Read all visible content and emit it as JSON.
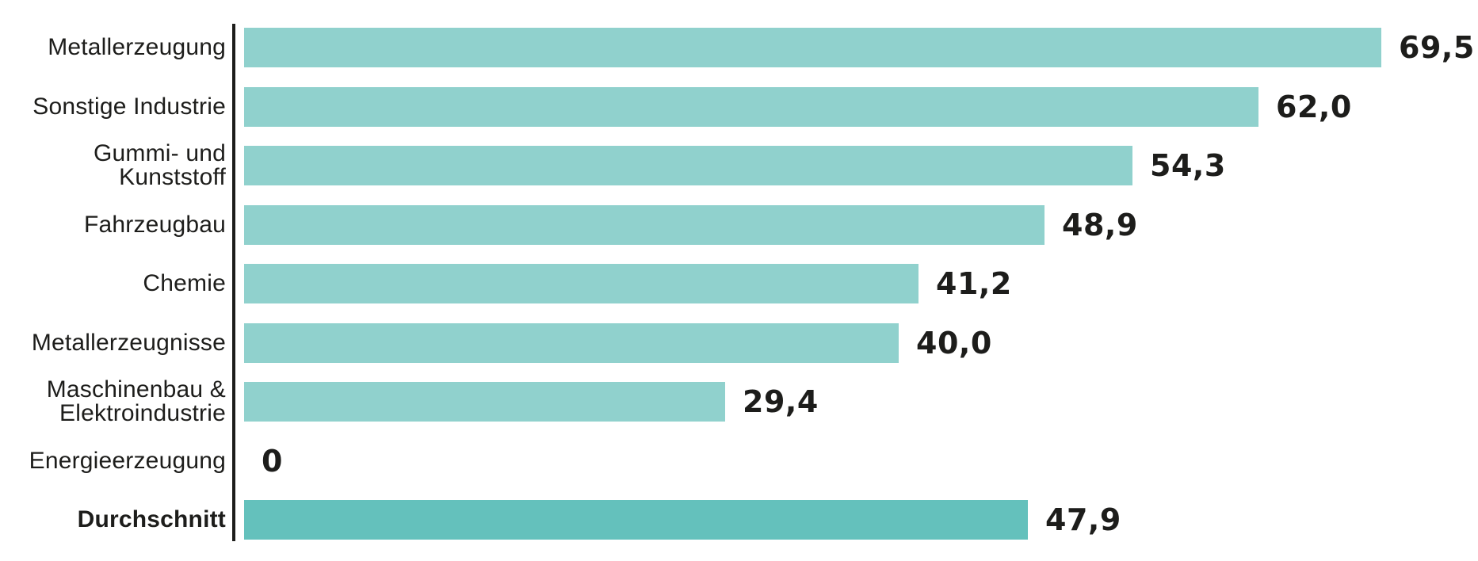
{
  "chart_data": {
    "type": "bar",
    "orientation": "horizontal",
    "title": "",
    "xlabel": "",
    "ylabel": "",
    "xlim": [
      0,
      75
    ],
    "grid": false,
    "legend": null,
    "decimal_style": "comma",
    "categories": [
      "Metallerzeugung",
      "Sonstige Industrie",
      "Gummi- und Kunststoff",
      "Fahrzeugbau",
      "Chemie",
      "Metallerzeugnisse",
      "Maschinenbau & Elektroindustrie",
      "Energieerzeugung",
      "Durchschnitt"
    ],
    "values": [
      69.5,
      62.0,
      54.3,
      48.9,
      41.2,
      40.0,
      29.4,
      0,
      47.9
    ],
    "rows": [
      {
        "label_lines": [
          "Metallerzeugung"
        ],
        "value": 69.5,
        "value_label": "69,5",
        "emphasis": false
      },
      {
        "label_lines": [
          "Sonstige Industrie"
        ],
        "value": 62.0,
        "value_label": "62,0",
        "emphasis": false
      },
      {
        "label_lines": [
          "Gummi- und",
          "Kunststoff"
        ],
        "value": 54.3,
        "value_label": "54,3",
        "emphasis": false
      },
      {
        "label_lines": [
          "Fahrzeugbau"
        ],
        "value": 48.9,
        "value_label": "48,9",
        "emphasis": false
      },
      {
        "label_lines": [
          "Chemie"
        ],
        "value": 41.2,
        "value_label": "41,2",
        "emphasis": false
      },
      {
        "label_lines": [
          "Metallerzeugnisse"
        ],
        "value": 40.0,
        "value_label": "40,0",
        "emphasis": false
      },
      {
        "label_lines": [
          "Maschinenbau &",
          "Elektroindustrie"
        ],
        "value": 29.4,
        "value_label": "29,4",
        "emphasis": false
      },
      {
        "label_lines": [
          "Energieerzeugung"
        ],
        "value": 0,
        "value_label": "0",
        "emphasis": false
      },
      {
        "label_lines": [
          "Durchschnitt"
        ],
        "value": 47.9,
        "value_label": "47,9",
        "emphasis": true
      }
    ],
    "colors": {
      "bar": "#90d1cd",
      "bar_emphasis": "#64c1bc",
      "text": "#1d1d1b",
      "axis": "#1d1d1b",
      "background": "#ffffff"
    }
  }
}
